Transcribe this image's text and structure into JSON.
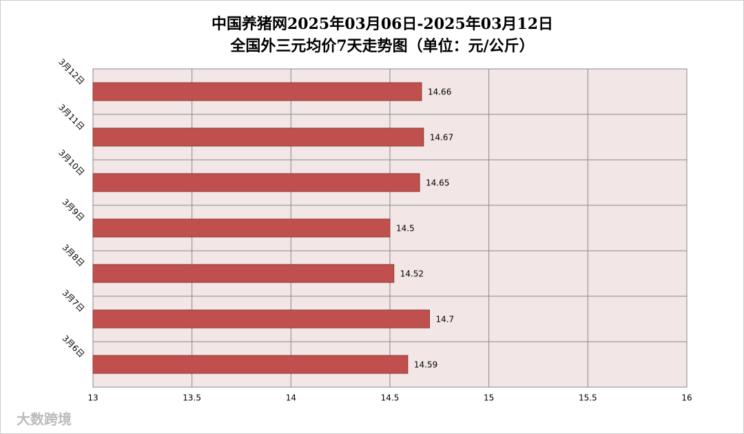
{
  "chart_data": {
    "type": "hbar",
    "title": [
      "中国养猪网2025年03月06日-2025年03月12日",
      "全国外三元均价7天走势图（单位：元/公斤）"
    ],
    "categories": [
      "3月12日",
      "3月11日",
      "3月10日",
      "3月9日",
      "3月8日",
      "3月7日",
      "3月6日"
    ],
    "values": [
      14.66,
      14.67,
      14.65,
      14.5,
      14.52,
      14.7,
      14.59
    ],
    "color": "#c0504d",
    "xlim": [
      13,
      16
    ],
    "xticks": [
      13,
      13.5,
      14,
      14.5,
      15,
      15.5,
      16
    ],
    "grid": true,
    "watermark": "大数跨境"
  }
}
